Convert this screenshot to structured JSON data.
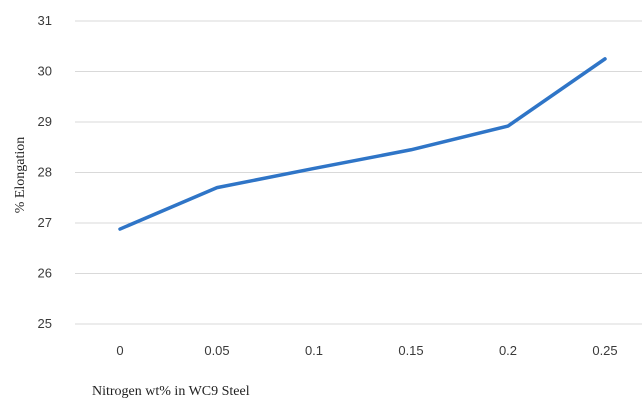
{
  "chart_data": {
    "type": "line",
    "title": "",
    "xlabel": "Nitrogen wt% in WC9  Steel",
    "ylabel": "% Elongation",
    "categories": [
      "0",
      "0.05",
      "0.1",
      "0.15",
      "0.2",
      "0.25"
    ],
    "y_ticks": [
      "25",
      "26",
      "27",
      "28",
      "29",
      "30",
      "31"
    ],
    "ylim": [
      25,
      31
    ],
    "grid": true,
    "legend": "none",
    "series": [
      {
        "values": [
          26.88,
          27.7,
          28.08,
          28.45,
          28.92,
          30.25
        ],
        "color": "#2f75c7"
      }
    ]
  }
}
